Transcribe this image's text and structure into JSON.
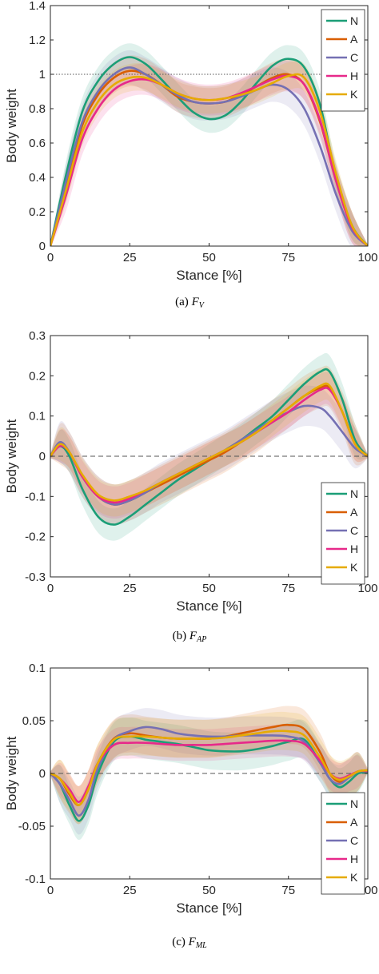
{
  "legend_colors": {
    "N": "#1b9e77",
    "A": "#d95f02",
    "C": "#7570b3",
    "H": "#e7298a",
    "K": "#e6ab02"
  },
  "chart_data": [
    {
      "type": "line",
      "caption": "(a)",
      "caption_symbol": "F",
      "caption_subscript": "V",
      "xlabel": "Stance [%]",
      "ylabel": "Body weight",
      "xlim": [
        0,
        100
      ],
      "ylim": [
        0,
        1.4
      ],
      "xticks": [
        "0",
        "25",
        "50",
        "75",
        "100"
      ],
      "yticks": [
        "0",
        "0.2",
        "0.4",
        "0.6",
        "0.8",
        "1",
        "1.2",
        "1.4"
      ],
      "reference_line": 1,
      "reference_style": "dotted",
      "legend_position": "top-right",
      "x": [
        0,
        5,
        10,
        15,
        20,
        25,
        30,
        35,
        40,
        45,
        50,
        55,
        60,
        65,
        70,
        75,
        80,
        85,
        90,
        95,
        100
      ],
      "series": [
        {
          "name": "N",
          "values": [
            0,
            0.42,
            0.78,
            0.96,
            1.06,
            1.1,
            1.06,
            0.97,
            0.87,
            0.78,
            0.74,
            0.76,
            0.84,
            0.95,
            1.05,
            1.09,
            1.04,
            0.82,
            0.4,
            0.12,
            0
          ],
          "band": 0.08
        },
        {
          "name": "A",
          "values": [
            0,
            0.36,
            0.7,
            0.88,
            0.98,
            1.02,
            1.0,
            0.94,
            0.87,
            0.84,
            0.83,
            0.84,
            0.88,
            0.93,
            0.98,
            1.0,
            0.94,
            0.72,
            0.38,
            0.11,
            0
          ],
          "band": 0.09
        },
        {
          "name": "C",
          "values": [
            0,
            0.38,
            0.72,
            0.9,
            1.0,
            1.04,
            1.0,
            0.94,
            0.88,
            0.84,
            0.83,
            0.84,
            0.87,
            0.91,
            0.94,
            0.91,
            0.8,
            0.58,
            0.3,
            0.09,
            0
          ],
          "band": 0.1
        },
        {
          "name": "H",
          "values": [
            0,
            0.3,
            0.62,
            0.8,
            0.91,
            0.96,
            0.97,
            0.94,
            0.89,
            0.86,
            0.85,
            0.86,
            0.89,
            0.93,
            0.97,
            0.99,
            0.94,
            0.73,
            0.38,
            0.11,
            0
          ],
          "band": 0.09
        },
        {
          "name": "K",
          "values": [
            0,
            0.33,
            0.66,
            0.84,
            0.94,
            0.98,
            0.98,
            0.94,
            0.89,
            0.86,
            0.85,
            0.86,
            0.88,
            0.91,
            0.95,
            0.99,
            0.98,
            0.78,
            0.42,
            0.12,
            0
          ],
          "band": 0.08
        }
      ]
    },
    {
      "type": "line",
      "caption": "(b)",
      "caption_symbol": "F",
      "caption_subscript": "AP",
      "xlabel": "Stance [%]",
      "ylabel": "Body weight",
      "xlim": [
        0,
        100
      ],
      "ylim": [
        -0.3,
        0.3
      ],
      "xticks": [
        "0",
        "25",
        "50",
        "75",
        "100"
      ],
      "yticks": [
        "-0.3",
        "-0.2",
        "-0.1",
        "0",
        "0.1",
        "0.2",
        "0.3"
      ],
      "reference_line": 0,
      "reference_style": "dashed",
      "legend_position": "bottom-right",
      "x": [
        0,
        3,
        6,
        10,
        15,
        20,
        25,
        30,
        35,
        40,
        45,
        50,
        55,
        60,
        65,
        70,
        75,
        80,
        85,
        88,
        92,
        96,
        100
      ],
      "series": [
        {
          "name": "N",
          "values": [
            0,
            0.025,
            0.0,
            -0.08,
            -0.15,
            -0.17,
            -0.15,
            -0.12,
            -0.09,
            -0.06,
            -0.035,
            -0.01,
            0.015,
            0.04,
            0.07,
            0.1,
            0.14,
            0.18,
            0.21,
            0.21,
            0.14,
            0.04,
            0
          ],
          "band": 0.04
        },
        {
          "name": "A",
          "values": [
            0,
            0.03,
            0.01,
            -0.05,
            -0.1,
            -0.12,
            -0.11,
            -0.09,
            -0.07,
            -0.05,
            -0.03,
            -0.01,
            0.01,
            0.035,
            0.06,
            0.09,
            0.12,
            0.15,
            0.17,
            0.17,
            0.11,
            0.03,
            0
          ],
          "band": 0.05
        },
        {
          "name": "C",
          "values": [
            0,
            0.035,
            0.01,
            -0.05,
            -0.1,
            -0.12,
            -0.11,
            -0.09,
            -0.065,
            -0.045,
            -0.025,
            -0.005,
            0.015,
            0.04,
            0.065,
            0.09,
            0.11,
            0.125,
            0.12,
            0.1,
            0.06,
            0.02,
            0
          ],
          "band": 0.05
        },
        {
          "name": "H",
          "values": [
            0,
            0.025,
            0.01,
            -0.05,
            -0.1,
            -0.115,
            -0.105,
            -0.085,
            -0.065,
            -0.045,
            -0.025,
            -0.005,
            0.015,
            0.035,
            0.06,
            0.085,
            0.11,
            0.14,
            0.165,
            0.165,
            0.11,
            0.03,
            0
          ],
          "band": 0.04
        },
        {
          "name": "K",
          "values": [
            0,
            0.03,
            0.01,
            -0.045,
            -0.095,
            -0.11,
            -0.1,
            -0.085,
            -0.065,
            -0.045,
            -0.025,
            -0.005,
            0.015,
            0.035,
            0.06,
            0.09,
            0.12,
            0.15,
            0.175,
            0.175,
            0.11,
            0.03,
            0
          ],
          "band": 0.04
        }
      ]
    },
    {
      "type": "line",
      "caption": "(c)",
      "caption_symbol": "F",
      "caption_subscript": "ML",
      "xlabel": "Stance [%]",
      "ylabel": "Body weight",
      "xlim": [
        0,
        100
      ],
      "ylim": [
        -0.1,
        0.1
      ],
      "xticks": [
        "0",
        "25",
        "50",
        "75",
        "100"
      ],
      "yticks": [
        "-0.1",
        "-0.05",
        "0",
        "0.05",
        "0.1"
      ],
      "reference_line": 0,
      "reference_style": "dashed",
      "legend_position": "bottom-right",
      "x": [
        0,
        3,
        6,
        9,
        12,
        15,
        20,
        25,
        30,
        35,
        40,
        45,
        50,
        55,
        60,
        65,
        70,
        75,
        80,
        85,
        88,
        91,
        94,
        97,
        100
      ],
      "series": [
        {
          "name": "N",
          "values": [
            0,
            -0.01,
            -0.03,
            -0.045,
            -0.03,
            0.0,
            0.03,
            0.035,
            0.032,
            0.03,
            0.028,
            0.025,
            0.022,
            0.021,
            0.021,
            0.023,
            0.026,
            0.03,
            0.032,
            0.01,
            -0.005,
            -0.013,
            -0.008,
            0.0,
            0.001
          ],
          "band": 0.018
        },
        {
          "name": "A",
          "values": [
            0,
            -0.005,
            -0.02,
            -0.03,
            -0.015,
            0.01,
            0.033,
            0.038,
            0.036,
            0.034,
            0.033,
            0.033,
            0.033,
            0.035,
            0.038,
            0.041,
            0.044,
            0.046,
            0.042,
            0.02,
            0.0,
            -0.008,
            -0.004,
            0.002,
            0.003
          ],
          "band": 0.018
        },
        {
          "name": "C",
          "values": [
            0,
            -0.01,
            -0.025,
            -0.04,
            -0.025,
            0.005,
            0.032,
            0.04,
            0.044,
            0.042,
            0.038,
            0.036,
            0.035,
            0.035,
            0.036,
            0.036,
            0.036,
            0.035,
            0.03,
            0.01,
            -0.005,
            -0.01,
            -0.004,
            0.002,
            0.003
          ],
          "band": 0.018
        },
        {
          "name": "H",
          "values": [
            0,
            -0.005,
            -0.015,
            -0.027,
            -0.012,
            0.01,
            0.027,
            0.029,
            0.029,
            0.028,
            0.027,
            0.027,
            0.027,
            0.028,
            0.029,
            0.03,
            0.031,
            0.031,
            0.028,
            0.012,
            0.0,
            -0.005,
            -0.002,
            0.002,
            0.002
          ],
          "band": 0.015
        },
        {
          "name": "K",
          "values": [
            0,
            -0.005,
            -0.018,
            -0.03,
            -0.015,
            0.01,
            0.032,
            0.035,
            0.035,
            0.034,
            0.033,
            0.033,
            0.033,
            0.034,
            0.036,
            0.038,
            0.04,
            0.04,
            0.036,
            0.015,
            0.0,
            -0.006,
            -0.003,
            0.002,
            0.003
          ],
          "band": 0.018
        }
      ]
    }
  ]
}
